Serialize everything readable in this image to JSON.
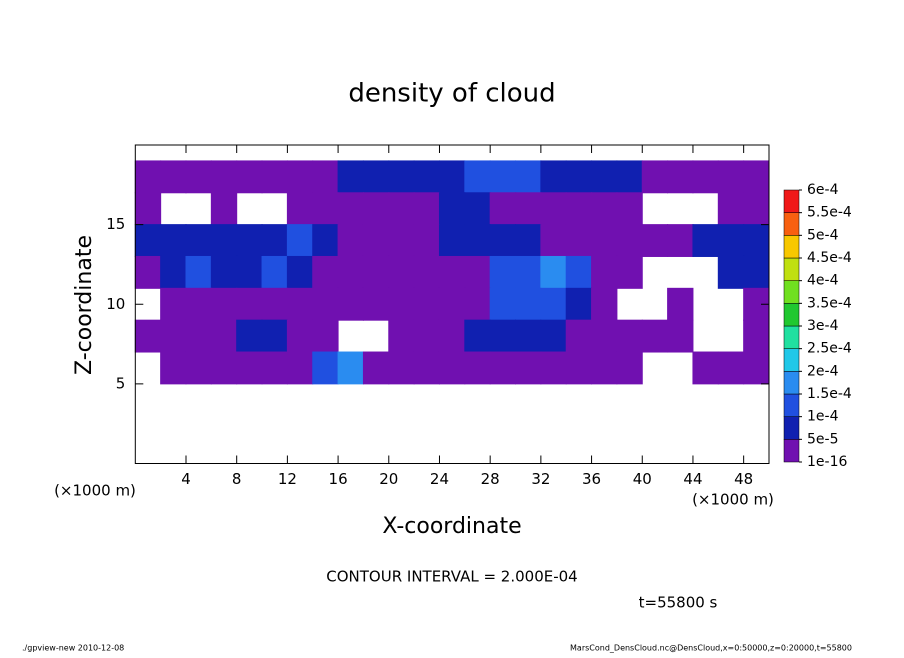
{
  "chart_data": {
    "type": "contour",
    "title": "density of cloud",
    "xlabel": "X-coordinate",
    "ylabel": "Z-coordinate",
    "xunit": "(×1000 m)",
    "xunit2": "(×1000 m)",
    "contour_note": "CONTOUR INTERVAL = 2.000E-04",
    "time_note": "t=55800 s",
    "footer_left": "./gpview-new  2010-12-08",
    "footer_right": "MarsCond_DensCloud.nc@DensCloud,x=0:50000,z=0:20000,t=55800",
    "xlim": [
      0,
      50
    ],
    "ylim": [
      0,
      20
    ],
    "xticks": [
      4,
      8,
      12,
      16,
      20,
      24,
      28,
      32,
      36,
      40,
      44,
      48
    ],
    "yticks": [
      5,
      10,
      15
    ],
    "x": [
      1,
      3,
      5,
      7,
      9,
      11,
      13,
      15,
      17,
      19,
      21,
      23,
      25,
      27,
      29,
      31,
      33,
      35,
      37,
      39,
      41,
      43,
      45,
      47,
      49
    ],
    "y": [
      18,
      16,
      14,
      12,
      10,
      8,
      6
    ],
    "z": [
      [
        1e-05,
        1e-05,
        1e-05,
        1e-05,
        1e-05,
        1e-05,
        1e-05,
        1e-05,
        7e-05,
        7e-05,
        7e-05,
        7e-05,
        7e-05,
        0.00012,
        0.00012,
        0.00012,
        7e-05,
        7e-05,
        7e-05,
        7e-05,
        1e-05,
        1e-05,
        1e-05,
        1e-05,
        1e-05
      ],
      [
        1e-05,
        null,
        null,
        1e-05,
        null,
        null,
        1e-05,
        1e-05,
        1e-05,
        1e-05,
        1e-05,
        1e-05,
        7e-05,
        7e-05,
        1e-05,
        1e-05,
        1e-05,
        1e-05,
        1e-05,
        1e-05,
        null,
        null,
        null,
        1e-05,
        1e-05
      ],
      [
        7e-05,
        7e-05,
        7e-05,
        7e-05,
        7e-05,
        7e-05,
        0.00012,
        7e-05,
        1e-05,
        1e-05,
        1e-05,
        1e-05,
        7e-05,
        7e-05,
        7e-05,
        7e-05,
        1e-05,
        1e-05,
        1e-05,
        1e-05,
        1e-05,
        1e-05,
        7e-05,
        7e-05,
        7e-05
      ],
      [
        1e-05,
        7e-05,
        0.00012,
        7e-05,
        7e-05,
        0.00012,
        7e-05,
        1e-05,
        1e-05,
        1e-05,
        1e-05,
        1e-05,
        1e-05,
        1e-05,
        0.00012,
        0.00012,
        0.00017,
        0.00012,
        1e-05,
        1e-05,
        null,
        null,
        null,
        7e-05,
        7e-05
      ],
      [
        null,
        1e-05,
        1e-05,
        1e-05,
        1e-05,
        1e-05,
        1e-05,
        1e-05,
        1e-05,
        1e-05,
        1e-05,
        1e-05,
        1e-05,
        1e-05,
        0.00012,
        0.00012,
        0.00012,
        7e-05,
        1e-05,
        null,
        null,
        1e-05,
        null,
        null,
        1e-05
      ],
      [
        1e-05,
        1e-05,
        1e-05,
        1e-05,
        7e-05,
        7e-05,
        1e-05,
        1e-05,
        null,
        null,
        1e-05,
        1e-05,
        1e-05,
        7e-05,
        7e-05,
        7e-05,
        7e-05,
        1e-05,
        1e-05,
        1e-05,
        1e-05,
        1e-05,
        null,
        null,
        1e-05
      ],
      [
        null,
        1e-05,
        1e-05,
        1e-05,
        1e-05,
        1e-05,
        1e-05,
        0.00012,
        0.00017,
        1e-05,
        1e-05,
        1e-05,
        1e-05,
        1e-05,
        1e-05,
        1e-05,
        1e-05,
        1e-05,
        1e-05,
        1e-05,
        null,
        null,
        1e-05,
        1e-05,
        1e-05
      ]
    ],
    "levels": [
      {
        "value": 1e-16,
        "label": "1e-16"
      },
      {
        "value": 5e-05,
        "label": "5e-5"
      },
      {
        "value": 0.0001,
        "label": "1e-4"
      },
      {
        "value": 0.00015,
        "label": "1.5e-4"
      },
      {
        "value": 0.0002,
        "label": "2e-4"
      },
      {
        "value": 0.00025,
        "label": "2.5e-4"
      },
      {
        "value": 0.0003,
        "label": "3e-4"
      },
      {
        "value": 0.00035,
        "label": "3.5e-4"
      },
      {
        "value": 0.0004,
        "label": "4e-4"
      },
      {
        "value": 0.00045,
        "label": "4.5e-4"
      },
      {
        "value": 0.0005,
        "label": "5e-4"
      },
      {
        "value": 0.00055,
        "label": "5.5e-4"
      },
      {
        "value": 0.0006,
        "label": "6e-4"
      }
    ],
    "colors": [
      "#7010b0",
      "#1020b0",
      "#2050e0",
      "#2a8cf0",
      "#20c8e8",
      "#20e0a0",
      "#20c830",
      "#70e020",
      "#c0e010",
      "#f8c800",
      "#f86010",
      "#f01818",
      "#f89090"
    ]
  }
}
